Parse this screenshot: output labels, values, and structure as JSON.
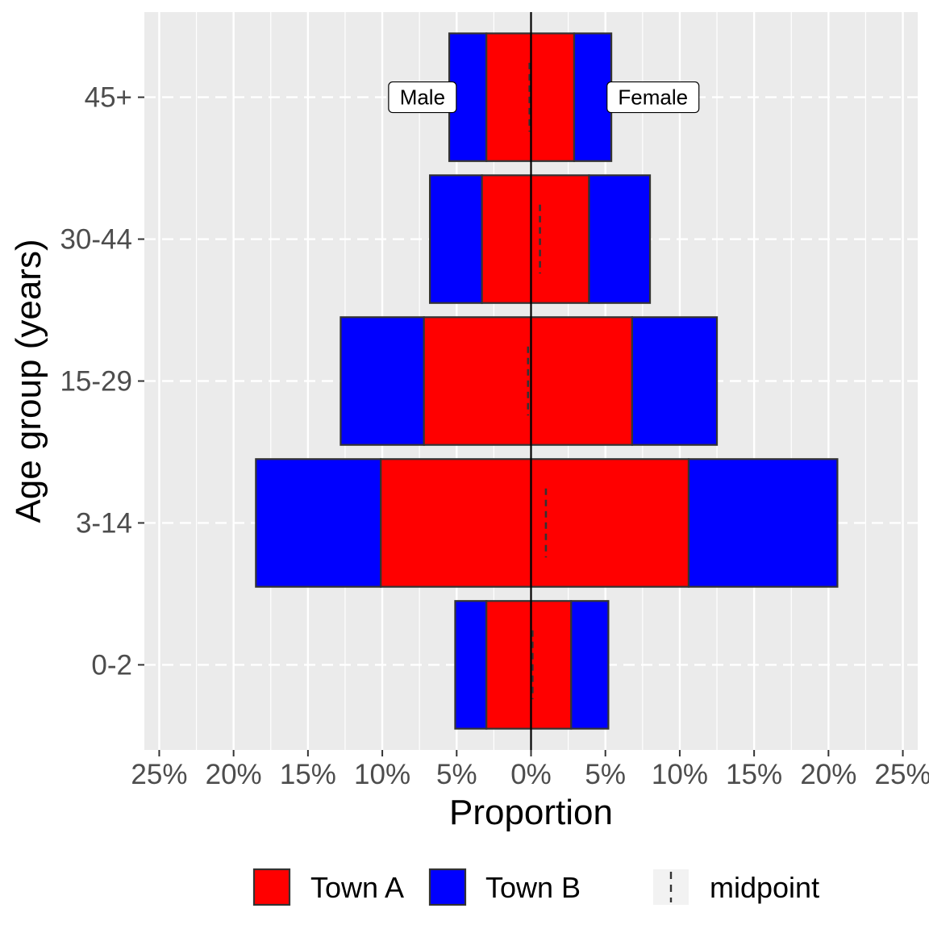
{
  "chart_data": {
    "type": "bar",
    "orientation": "horizontal",
    "subtype": "population-pyramid",
    "xlabel": "Proportion",
    "ylabel": "Age group (years)",
    "xlim": [
      -26,
      26
    ],
    "x_ticks": [
      -25,
      -20,
      -15,
      -10,
      -5,
      0,
      5,
      10,
      15,
      20,
      25
    ],
    "x_tick_labels": [
      "25%",
      "20%",
      "15%",
      "10%",
      "5%",
      "0%",
      "5%",
      "10%",
      "15%",
      "20%",
      "25%"
    ],
    "categories": [
      "0-2",
      "3-14",
      "15-29",
      "30-44",
      "45+"
    ],
    "side_labels": {
      "left": "Male",
      "right": "Female"
    },
    "series": [
      {
        "name": "Town A",
        "color": "#ff0000",
        "male": [
          3.0,
          10.1,
          7.2,
          3.3,
          3.0
        ],
        "female": [
          2.7,
          10.6,
          6.8,
          3.9,
          2.9
        ]
      },
      {
        "name": "Town B",
        "color": "#0000ff",
        "male": [
          2.1,
          8.4,
          5.6,
          3.5,
          2.5
        ],
        "female": [
          2.5,
          10.0,
          5.7,
          4.1,
          2.5
        ]
      }
    ],
    "midpoint": {
      "name": "midpoint",
      "values": [
        0.1,
        1.0,
        -0.2,
        0.6,
        -0.1
      ]
    },
    "legend": {
      "position": "bottom",
      "items": [
        {
          "label": "Town A",
          "kind": "fill",
          "color": "#ff0000"
        },
        {
          "label": "Town B",
          "kind": "fill",
          "color": "#0000ff"
        },
        {
          "label": "midpoint",
          "kind": "dashed-line",
          "color": "#333333"
        }
      ]
    },
    "grid": true,
    "panel_background": "#ebebeb",
    "bar_outline": "#333333"
  }
}
